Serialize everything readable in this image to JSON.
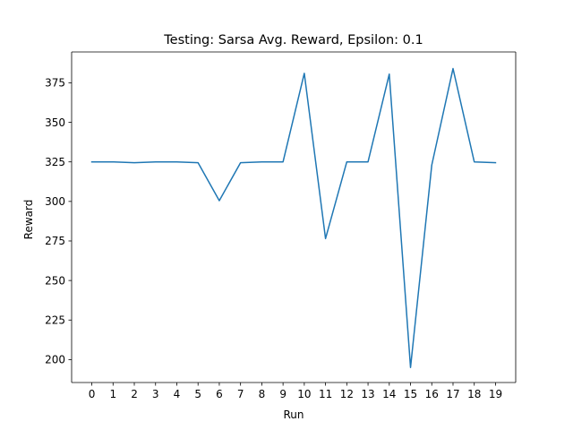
{
  "chart_data": {
    "type": "line",
    "title": "Testing: Sarsa Avg. Reward, Epsilon: 0.1",
    "xlabel": "Run",
    "ylabel": "Reward",
    "x": [
      0,
      1,
      2,
      3,
      4,
      5,
      6,
      7,
      8,
      9,
      10,
      11,
      12,
      13,
      14,
      15,
      16,
      17,
      18,
      19
    ],
    "x_ticks": [
      "0",
      "1",
      "2",
      "3",
      "4",
      "5",
      "6",
      "7",
      "8",
      "9",
      "10",
      "11",
      "12",
      "13",
      "14",
      "15",
      "16",
      "17",
      "18",
      "19"
    ],
    "y_ticks": [
      "200",
      "225",
      "250",
      "275",
      "300",
      "325",
      "350",
      "375"
    ],
    "xlim": [
      -0.95,
      19.95
    ],
    "ylim": [
      185.5,
      394.5
    ],
    "series": [
      {
        "values": [
          325,
          325,
          324.5,
          325,
          325,
          324.5,
          300.5,
          324.5,
          325,
          325,
          381,
          276.5,
          325,
          325,
          380.5,
          195,
          323,
          384,
          325,
          324.5
        ],
        "color": "#1f77b4"
      }
    ],
    "grid": false,
    "legend": "none"
  }
}
